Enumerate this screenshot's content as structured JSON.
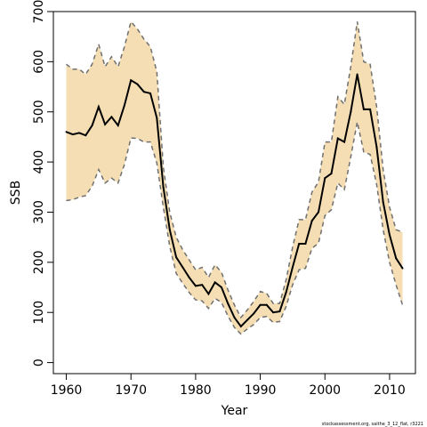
{
  "chart_data": {
    "type": "line",
    "xlabel": "Year",
    "ylabel": "SSB",
    "xlim": [
      1958,
      2014
    ],
    "ylim": [
      -22,
      700
    ],
    "xticks": [
      1960,
      1970,
      1980,
      1990,
      2000,
      2010
    ],
    "yticks": [
      0,
      100,
      200,
      300,
      400,
      500,
      600,
      700
    ],
    "footnote": "stockassessment.org, saithe_3_12_flat, r3221",
    "colors": {
      "band": "#f5deb3",
      "estimate": "#000000",
      "bounds": "#707070",
      "frame": "#000000"
    },
    "series": [
      {
        "role": "estimate",
        "x": [
          1960,
          1961,
          1962,
          1963,
          1964,
          1965,
          1966,
          1967,
          1968,
          1969,
          1970,
          1971,
          1972,
          1973,
          1974,
          1975,
          1976,
          1977,
          1978,
          1979,
          1980,
          1981,
          1982,
          1983,
          1984,
          1985,
          1986,
          1987,
          1988,
          1989,
          1990,
          1991,
          1992,
          1993,
          1994,
          1995,
          1996,
          1997,
          1998,
          1999,
          2000,
          2001,
          2002,
          2003,
          2004,
          2005,
          2006,
          2007,
          2008,
          2009,
          2010,
          2011,
          2012
        ],
        "values": [
          460,
          455,
          458,
          453,
          473,
          510,
          475,
          490,
          473,
          513,
          563,
          555,
          540,
          537,
          488,
          350,
          265,
          210,
          190,
          170,
          153,
          155,
          137,
          160,
          150,
          118,
          90,
          72,
          85,
          98,
          115,
          115,
          100,
          102,
          140,
          190,
          237,
          237,
          283,
          300,
          368,
          377,
          447,
          440,
          500,
          575,
          505,
          505,
          430,
          320,
          255,
          208,
          188
        ]
      },
      {
        "role": "upper",
        "x": [
          1960,
          1961,
          1962,
          1963,
          1964,
          1965,
          1966,
          1967,
          1968,
          1969,
          1970,
          1971,
          1972,
          1973,
          1974,
          1975,
          1976,
          1977,
          1978,
          1979,
          1980,
          1981,
          1982,
          1983,
          1984,
          1985,
          1986,
          1987,
          1988,
          1989,
          1990,
          1991,
          1992,
          1993,
          1994,
          1995,
          1996,
          1997,
          1998,
          1999,
          2000,
          2001,
          2002,
          2003,
          2004,
          2005,
          2006,
          2007,
          2008,
          2009,
          2010,
          2011,
          2012
        ],
        "values": [
          595,
          585,
          585,
          575,
          595,
          635,
          590,
          610,
          590,
          630,
          680,
          665,
          645,
          630,
          580,
          390,
          300,
          250,
          225,
          205,
          185,
          190,
          170,
          195,
          180,
          145,
          115,
          90,
          105,
          122,
          142,
          138,
          118,
          118,
          165,
          230,
          285,
          285,
          340,
          360,
          440,
          440,
          530,
          515,
          590,
          680,
          600,
          595,
          510,
          385,
          310,
          265,
          260
        ]
      },
      {
        "role": "lower",
        "x": [
          1960,
          1961,
          1962,
          1963,
          1964,
          1965,
          1966,
          1967,
          1968,
          1969,
          1970,
          1971,
          1972,
          1973,
          1974,
          1975,
          1976,
          1977,
          1978,
          1979,
          1980,
          1981,
          1982,
          1983,
          1984,
          1985,
          1986,
          1987,
          1988,
          1989,
          1990,
          1991,
          1992,
          1993,
          1994,
          1995,
          1996,
          1997,
          1998,
          1999,
          2000,
          2001,
          2002,
          2003,
          2004,
          2005,
          2006,
          2007,
          2008,
          2009,
          2010,
          2011,
          2012
        ],
        "values": [
          323,
          325,
          330,
          333,
          352,
          385,
          358,
          368,
          358,
          395,
          448,
          447,
          440,
          440,
          398,
          310,
          232,
          178,
          158,
          140,
          125,
          123,
          108,
          128,
          120,
          93,
          70,
          57,
          67,
          76,
          90,
          92,
          80,
          82,
          112,
          155,
          185,
          188,
          228,
          238,
          293,
          305,
          358,
          345,
          410,
          480,
          420,
          415,
          355,
          265,
          200,
          155,
          115
        ]
      }
    ]
  }
}
